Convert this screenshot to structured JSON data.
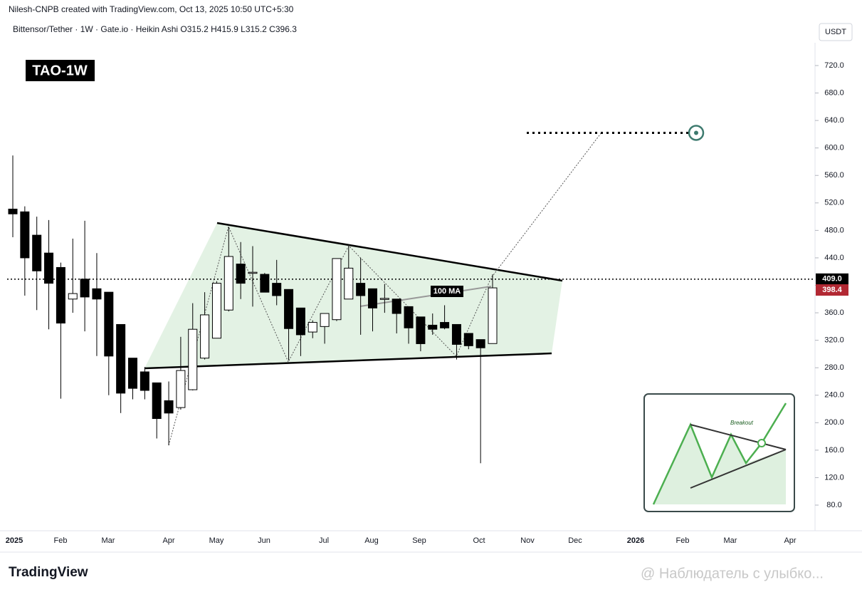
{
  "header": "Nilesh-CNPB created with TradingView.com, Oct 13, 2025 10:50 UTC+5:30",
  "chart_data": {
    "type": "candlestick",
    "symbol_line": "Bittensor/Tether · 1W · Gate.io · Heikin Ashi  O315.2 H415.9 L315.2 C396.3",
    "badge": "TAO-1W",
    "currency": "USDT",
    "xlabels": [
      "2025",
      "Feb",
      "Mar",
      "Apr",
      "May",
      "Jun",
      "Jul",
      "Aug",
      "Sep",
      "Oct",
      "Nov",
      "Dec",
      "2026",
      "Feb",
      "Mar",
      "Apr"
    ],
    "open": [
      511,
      507,
      473,
      447,
      426,
      380,
      409,
      395,
      390,
      343,
      294,
      274,
      258,
      232,
      222,
      248,
      294,
      323,
      364,
      431,
      418,
      416,
      403,
      394,
      367,
      332,
      340,
      350,
      380,
      403,
      395,
      380,
      380,
      369,
      354,
      342,
      346,
      343,
      330,
      321,
      315.2
    ],
    "high": [
      589,
      515,
      500,
      495,
      433,
      468,
      494,
      447,
      390,
      343,
      294,
      281,
      258,
      260,
      325,
      374,
      390,
      406,
      485,
      463,
      457,
      418,
      437,
      394,
      367,
      349,
      359,
      439,
      457,
      440,
      395,
      402,
      380,
      369,
      354,
      359,
      371,
      343,
      330,
      321,
      415.9
    ],
    "low": [
      470,
      385,
      364,
      336,
      235,
      360,
      333,
      297,
      240,
      214,
      234,
      234,
      177,
      167,
      219,
      247,
      292,
      323,
      362,
      380,
      369,
      390,
      371,
      291,
      297,
      323,
      315,
      348,
      380,
      328,
      333,
      360,
      330,
      315,
      304,
      328,
      336,
      292,
      307,
      141,
      315.2
    ],
    "close": [
      504,
      440,
      421,
      403,
      345,
      388,
      383,
      380,
      297,
      243,
      250,
      247,
      206,
      214,
      276,
      336,
      357,
      403,
      442,
      403,
      419,
      390,
      385,
      337,
      328,
      346,
      359,
      439,
      425,
      385,
      367,
      381,
      359,
      338,
      315,
      336,
      338,
      314,
      312,
      309,
      396.3
    ],
    "up_color": "#ffffff",
    "down_color": "#000000",
    "ylim": [
      80,
      720
    ],
    "yticks": [
      {
        "value": 80,
        "label": "80.0"
      },
      {
        "value": 120,
        "label": "120.0"
      },
      {
        "value": 160,
        "label": "160.0"
      },
      {
        "value": 200,
        "label": "200.0"
      },
      {
        "value": 240,
        "label": "240.0"
      },
      {
        "value": 280,
        "label": "280.0"
      },
      {
        "value": 320,
        "label": "320.0"
      },
      {
        "value": 360,
        "label": "360.0"
      },
      {
        "value": 400,
        "label": "400.0"
      },
      {
        "value": 440,
        "label": "440.0"
      },
      {
        "value": 480,
        "label": "480.0"
      },
      {
        "value": 520,
        "label": "520.0"
      },
      {
        "value": 560,
        "label": "560.0"
      },
      {
        "value": 600,
        "label": "600.0"
      },
      {
        "value": 640,
        "label": "640.0"
      },
      {
        "value": 680,
        "label": "680.0"
      },
      {
        "value": 720,
        "label": "720.0"
      }
    ],
    "grid": false,
    "price_tags": [
      {
        "value": 409,
        "label": "409.0",
        "color": "#000000"
      },
      {
        "value": 398.4,
        "label": "398.4",
        "color": "#b22833"
      }
    ],
    "target": 622,
    "ma_label": "100 MA",
    "inset_label": "Breakout"
  },
  "footer": {
    "logo": "TradingView",
    "watermark": "@ Наблюдатель с улыбко..."
  }
}
